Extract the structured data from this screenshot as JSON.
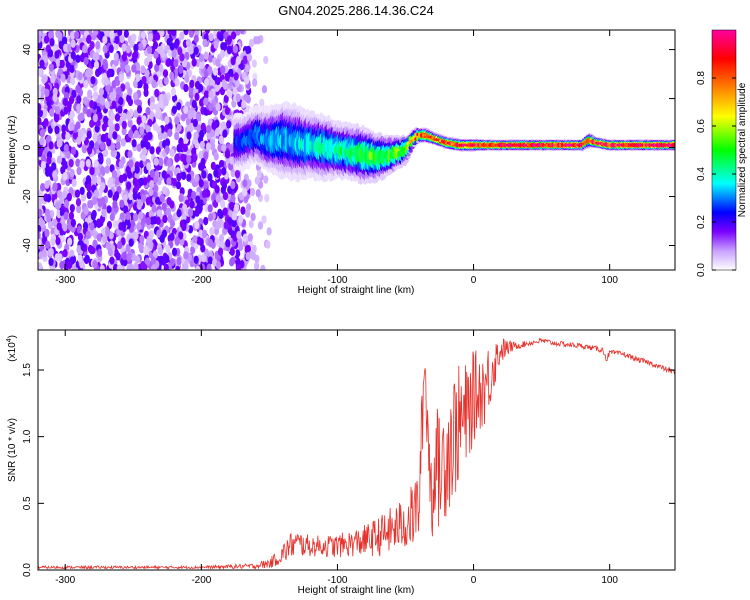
{
  "title": "GN04.2025.286.14.36.C24",
  "chart_data": [
    {
      "type": "heatmap",
      "name": "spectrogram",
      "xlabel": "Height of straight line (km)",
      "ylabel": "Frequency (Hz)",
      "xlim": [
        -320,
        148
      ],
      "ylim": [
        -50,
        48
      ],
      "xticks": [
        -300,
        -200,
        -100,
        0,
        100
      ],
      "xtick_labels": [
        "-300",
        "-200",
        "-100",
        "0",
        "100"
      ],
      "yticks": [
        -40,
        -20,
        0,
        20,
        40
      ],
      "ytick_labels": [
        "-40",
        "-20",
        "0",
        "20",
        "40"
      ],
      "noise_region": {
        "x_from": -320,
        "x_to": -165,
        "sparse_to": -150
      },
      "ridge": {
        "x": [
          -170,
          -160,
          -150,
          -140,
          -130,
          -120,
          -110,
          -100,
          -90,
          -80,
          -70,
          -60,
          -50,
          -45,
          -40,
          -35,
          -30,
          -20,
          -10,
          0,
          10,
          20,
          40,
          60,
          80,
          85,
          90,
          100,
          120,
          148
        ],
        "f": [
          2,
          5,
          3,
          3,
          2,
          1,
          0,
          -1,
          -2,
          -3,
          -4,
          -3,
          -1,
          3,
          5,
          5,
          4,
          2,
          1,
          1,
          1,
          1,
          1,
          1,
          1,
          3,
          2,
          1,
          1,
          1
        ],
        "amp": [
          0.25,
          0.3,
          0.32,
          0.34,
          0.36,
          0.38,
          0.4,
          0.42,
          0.45,
          0.5,
          0.55,
          0.55,
          0.6,
          0.75,
          0.85,
          0.85,
          0.85,
          0.85,
          0.9,
          0.9,
          0.92,
          0.95,
          0.95,
          0.95,
          0.95,
          0.85,
          0.9,
          0.95,
          0.95,
          0.95
        ],
        "spread": [
          6,
          6,
          7,
          8,
          8,
          7,
          7,
          6,
          6,
          6,
          5,
          4,
          3,
          2,
          1.5,
          1.5,
          1.2,
          1.2,
          1.2,
          1.2,
          1,
          1,
          1,
          1,
          1,
          1.5,
          1,
          1,
          1,
          1
        ]
      },
      "colorbar": {
        "label": "Normalized spectral amplitude",
        "min": 0.0,
        "max": 1.0,
        "ticks": [
          0.0,
          0.2,
          0.4,
          0.6,
          0.8
        ],
        "tick_labels": [
          "0.0",
          "0.2",
          "0.4",
          "0.6",
          "0.8"
        ],
        "colors": [
          "#ffffff",
          "#7b00ff",
          "#0000ff",
          "#00ffff",
          "#00ff00",
          "#ffff00",
          "#ff8000",
          "#ff0000",
          "#ff00a0"
        ]
      }
    },
    {
      "type": "line",
      "name": "snr",
      "xlabel": "Height of straight line (km)",
      "ylabel": "SNR (10 * v/v)",
      "scale_label": "(x10",
      "scale_exp": "4",
      "scale_close": ")",
      "xlim": [
        -320,
        148
      ],
      "ylim": [
        0,
        1.8
      ],
      "xticks": [
        -300,
        -200,
        -100,
        0,
        100
      ],
      "xtick_labels": [
        "-300",
        "-200",
        "-100",
        "0",
        "100"
      ],
      "yticks": [
        0.0,
        0.5,
        1.0,
        1.5
      ],
      "ytick_labels": [
        "0.0",
        "0.5",
        "1.0",
        "1.5"
      ],
      "color": "#e8302a",
      "series": [
        {
          "name": "SNR",
          "x": [
            -320,
            -250,
            -200,
            -160,
            -150,
            -145,
            -140,
            -135,
            -130,
            -120,
            -110,
            -100,
            -90,
            -80,
            -70,
            -60,
            -50,
            -45,
            -40,
            -38,
            -36,
            -34,
            -32,
            -30,
            -28,
            -25,
            -20,
            -15,
            -10,
            -5,
            0,
            5,
            10,
            15,
            20,
            30,
            40,
            50,
            60,
            80,
            95,
            98,
            100,
            110,
            120,
            130,
            148
          ],
          "y": [
            0.02,
            0.02,
            0.02,
            0.03,
            0.05,
            0.08,
            0.12,
            0.18,
            0.2,
            0.18,
            0.18,
            0.18,
            0.2,
            0.22,
            0.25,
            0.3,
            0.35,
            0.4,
            0.5,
            1.0,
            1.55,
            1.2,
            0.7,
            0.5,
            0.9,
            0.7,
            0.9,
            1.0,
            1.1,
            1.15,
            1.3,
            1.35,
            1.4,
            1.55,
            1.65,
            1.68,
            1.7,
            1.72,
            1.7,
            1.68,
            1.65,
            1.58,
            1.63,
            1.62,
            1.58,
            1.55,
            1.48
          ],
          "noise": [
            0.01,
            0.01,
            0.01,
            0.02,
            0.04,
            0.05,
            0.08,
            0.1,
            0.1,
            0.08,
            0.08,
            0.09,
            0.1,
            0.12,
            0.15,
            0.18,
            0.2,
            0.25,
            0.3,
            0.35,
            0.1,
            0.45,
            0.35,
            0.3,
            0.4,
            0.45,
            0.5,
            0.5,
            0.45,
            0.4,
            0.35,
            0.3,
            0.3,
            0.2,
            0.1,
            0.03,
            0.02,
            0.02,
            0.02,
            0.02,
            0.02,
            0.03,
            0.02,
            0.02,
            0.02,
            0.02,
            0.02
          ]
        }
      ]
    }
  ]
}
